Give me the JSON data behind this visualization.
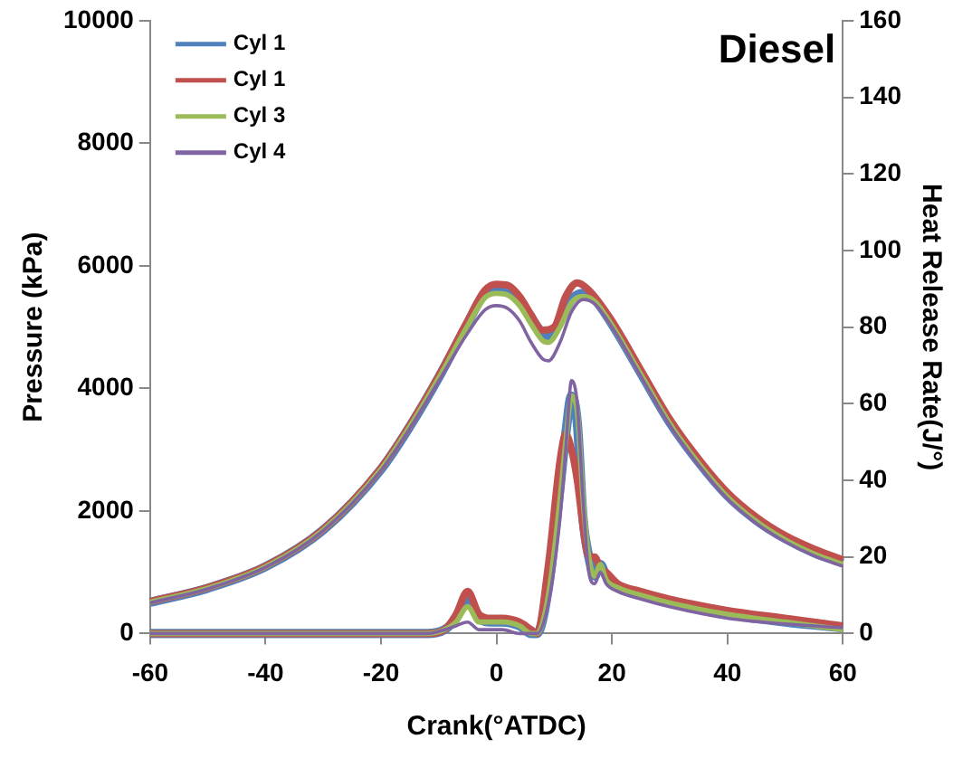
{
  "chart_data": {
    "type": "line",
    "title": "Diesel",
    "xlabel": "Crank(°ATDC)",
    "ylabel": "Pressure (kPa)",
    "y2label": "Heat Release Rate(J/°)",
    "xlim": [
      -60,
      60
    ],
    "xticks": [
      -60,
      -40,
      -20,
      0,
      20,
      40,
      60
    ],
    "ylim": [
      0,
      10000
    ],
    "yticks": [
      0,
      2000,
      4000,
      6000,
      8000,
      10000
    ],
    "y2lim": [
      0,
      160
    ],
    "y2ticks": [
      0,
      20,
      40,
      60,
      80,
      100,
      120,
      140,
      160
    ],
    "grid": false,
    "legend": "top left",
    "marker": "none",
    "line_style": "solid",
    "series": [
      {
        "name": "Cyl 1",
        "color": "#4f81bd",
        "x": [
          -60,
          -50,
          -40,
          -30,
          -20,
          -15,
          -10,
          -5,
          -2,
          0,
          2,
          4,
          6,
          8,
          9,
          11,
          13,
          15,
          17,
          20,
          25,
          30,
          35,
          40,
          45,
          50,
          55,
          60
        ],
        "values": [
          510,
          740,
          1090,
          1690,
          2680,
          3380,
          4180,
          5060,
          5560,
          5650,
          5630,
          5450,
          5150,
          4900,
          4850,
          5100,
          5450,
          5550,
          5450,
          5050,
          4250,
          3450,
          2800,
          2250,
          1850,
          1550,
          1320,
          1150
        ]
      },
      {
        "name": "Cyl 1",
        "color": "#c0504d",
        "x": [
          -60,
          -50,
          -40,
          -30,
          -20,
          -15,
          -10,
          -5,
          -2,
          0,
          2,
          4,
          6,
          8,
          10,
          12,
          14,
          16,
          20,
          25,
          30,
          35,
          40,
          45,
          50,
          55,
          60
        ],
        "values": [
          520,
          750,
          1100,
          1700,
          2700,
          3400,
          4200,
          5100,
          5600,
          5700,
          5680,
          5500,
          5200,
          4950,
          5000,
          5500,
          5720,
          5600,
          5100,
          4300,
          3500,
          2850,
          2300,
          1900,
          1600,
          1380,
          1200
        ]
      },
      {
        "name": "Cyl 3",
        "color": "#9bbb59",
        "x": [
          -60,
          -50,
          -40,
          -30,
          -20,
          -15,
          -10,
          -5,
          -2,
          0,
          2,
          4,
          6,
          8,
          9,
          11,
          13,
          15,
          17,
          20,
          25,
          30,
          35,
          40,
          45,
          50,
          55,
          60
        ],
        "values": [
          510,
          740,
          1090,
          1690,
          2680,
          3380,
          4170,
          5020,
          5480,
          5550,
          5520,
          5350,
          5050,
          4780,
          4750,
          5000,
          5400,
          5500,
          5420,
          5030,
          4230,
          3430,
          2780,
          2230,
          1830,
          1530,
          1300,
          1130
        ]
      },
      {
        "name": "Cyl 4",
        "color": "#8064a2",
        "x": [
          -60,
          -50,
          -40,
          -30,
          -20,
          -15,
          -10,
          -5,
          -2,
          0,
          2,
          4,
          6,
          8,
          9,
          11,
          13,
          15,
          17,
          20,
          25,
          30,
          35,
          40,
          45,
          50,
          55,
          60
        ],
        "values": [
          500,
          730,
          1080,
          1680,
          2660,
          3350,
          4120,
          4900,
          5280,
          5350,
          5300,
          5100,
          4750,
          4480,
          4450,
          4750,
          5250,
          5450,
          5380,
          5000,
          4200,
          3400,
          2750,
          2200,
          1800,
          1500,
          1270,
          1100
        ]
      },
      {
        "color": "#4f81bd",
        "axis": "y2",
        "x": [
          -60,
          -30,
          -15,
          -12,
          -9,
          -7,
          -5,
          -3,
          -1,
          1,
          4,
          6,
          7,
          9,
          11,
          12,
          13,
          14,
          15,
          16,
          17,
          18,
          19,
          21,
          25,
          30,
          40,
          50,
          60
        ],
        "values": [
          0,
          0,
          0,
          0,
          1,
          4,
          9,
          4,
          3,
          3,
          2,
          0,
          0,
          12,
          38,
          52,
          62,
          55,
          30,
          20,
          15,
          18,
          15,
          12,
          10,
          8,
          5,
          3,
          1.5
        ]
      },
      {
        "color": "#c0504d",
        "axis": "y2",
        "x": [
          -60,
          -30,
          -15,
          -12,
          -9,
          -7,
          -5,
          -3,
          -1,
          1,
          4,
          6,
          7,
          9,
          11,
          12,
          13,
          14,
          15,
          16,
          17,
          18,
          19,
          21,
          25,
          30,
          40,
          50,
          60
        ],
        "values": [
          0,
          0,
          0,
          0,
          1,
          5,
          11,
          5,
          4,
          4,
          3,
          1,
          0,
          18,
          45,
          52,
          48,
          40,
          28,
          20,
          20,
          17,
          16,
          13,
          11,
          9,
          6,
          4,
          2
        ]
      },
      {
        "color": "#9bbb59",
        "axis": "y2",
        "x": [
          -60,
          -30,
          -15,
          -12,
          -9,
          -7,
          -5,
          -3,
          -1,
          1,
          4,
          6,
          7,
          9,
          11,
          12,
          13,
          14,
          15,
          16,
          17,
          18,
          19,
          21,
          25,
          30,
          40,
          50,
          60
        ],
        "values": [
          0,
          0,
          0,
          0,
          1,
          3,
          7,
          3,
          3,
          3,
          2,
          0,
          0,
          10,
          35,
          50,
          62,
          58,
          35,
          20,
          15,
          18,
          14,
          12,
          10,
          8,
          5,
          3,
          1
        ]
      },
      {
        "color": "#8064a2",
        "axis": "y2",
        "x": [
          -60,
          -30,
          -15,
          -12,
          -9,
          -7,
          -5,
          -3,
          -1,
          1,
          4,
          6,
          7,
          9,
          11,
          12,
          13,
          14,
          15,
          16,
          17,
          18,
          19,
          21,
          25,
          30,
          40,
          50,
          60
        ],
        "values": [
          0,
          0,
          0,
          0,
          1,
          2,
          3,
          1,
          1,
          1,
          0,
          0,
          0,
          8,
          30,
          48,
          66,
          60,
          35,
          16,
          13,
          16,
          13,
          11,
          9,
          7,
          4,
          2.5,
          1.5
        ]
      }
    ]
  }
}
